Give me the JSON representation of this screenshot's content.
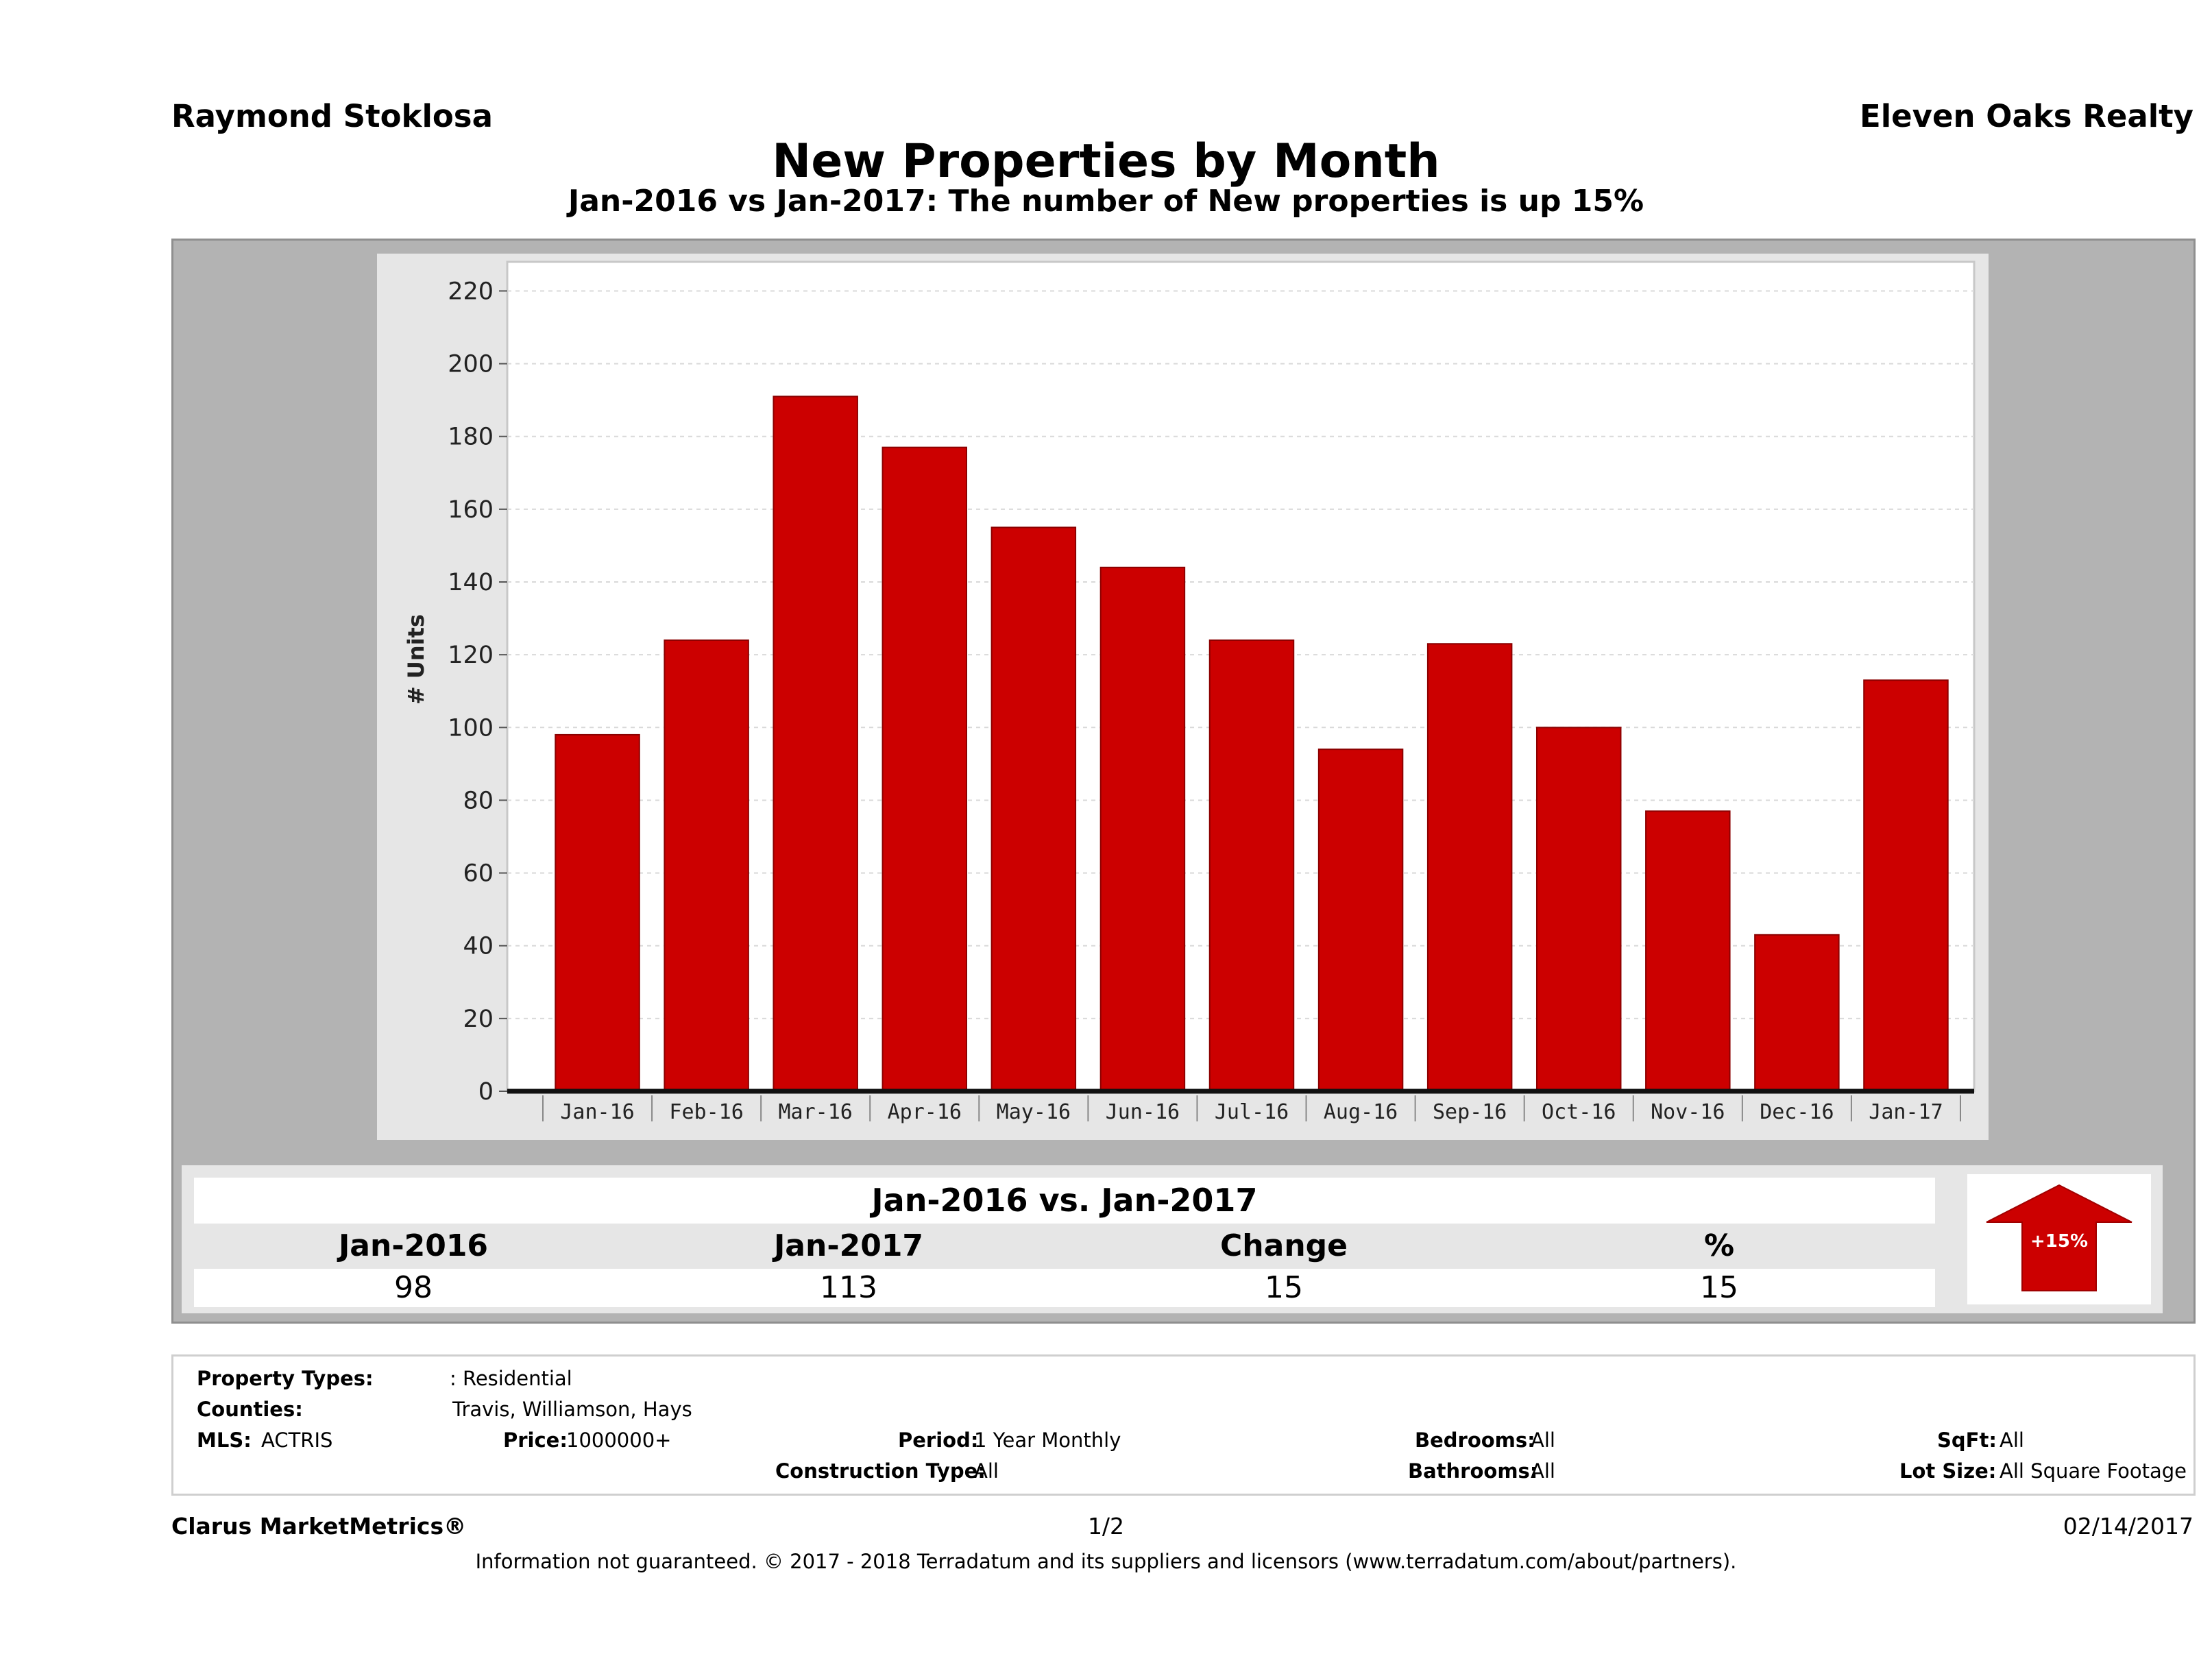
{
  "header": {
    "agent_name": "Raymond Stoklosa",
    "brokerage": "Eleven Oaks Realty",
    "title": "New Properties by Month",
    "subtitle": "Jan-2016 vs Jan-2017: The number of New  properties is up 15%"
  },
  "chart_data": {
    "type": "bar",
    "title": "New Properties by Month",
    "subtitle": "Jan-2016 vs Jan-2017: The number of New  properties is up 15%",
    "xlabel": "",
    "ylabel": "# Units",
    "ylim": [
      0,
      228
    ],
    "yticks": [
      0,
      20,
      40,
      60,
      80,
      100,
      120,
      140,
      160,
      180,
      200,
      220
    ],
    "grid": true,
    "categories": [
      "Jan-16",
      "Feb-16",
      "Mar-16",
      "Apr-16",
      "May-16",
      "Jun-16",
      "Jul-16",
      "Aug-16",
      "Sep-16",
      "Oct-16",
      "Nov-16",
      "Dec-16",
      "Jan-17"
    ],
    "values": [
      98,
      124,
      191,
      177,
      155,
      144,
      124,
      94,
      123,
      100,
      77,
      43,
      113
    ],
    "bar_color": "#cc0000"
  },
  "comparison": {
    "title": "Jan-2016 vs. Jan-2017",
    "headers": [
      "Jan-2016",
      "Jan-2017",
      "Change",
      "%"
    ],
    "values": [
      "98",
      "113",
      "15",
      "15"
    ],
    "badge": "+15%",
    "badge_color": "#cc0000"
  },
  "criteria": {
    "property_types_label": "Property Types:",
    "property_types_value": ": Residential",
    "counties_label": "Counties:",
    "counties_value": "Travis, Williamson, Hays",
    "mls_label": "MLS:",
    "mls_value": "ACTRIS",
    "price_label": "Price:",
    "price_value": "1000000+",
    "period_label": "Period:",
    "period_value": "1 Year Monthly",
    "construction_label": "Construction Type:",
    "construction_value": "All",
    "bedrooms_label": "Bedrooms:",
    "bedrooms_value": "All",
    "bathrooms_label": "Bathrooms:",
    "bathrooms_value": "All",
    "sqft_label": "SqFt:",
    "sqft_value": "All",
    "lotsize_label": "Lot Size:",
    "lotsize_value": "All Square Footage"
  },
  "footer": {
    "product": "Clarus MarketMetrics®",
    "page": "1/2",
    "date": "02/14/2017",
    "disclaimer": "Information not guaranteed. © 2017 - 2018 Terradatum and its suppliers and licensors (www.terradatum.com/about/partners)."
  }
}
